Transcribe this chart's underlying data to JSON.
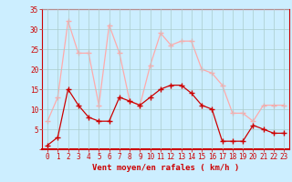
{
  "x": [
    0,
    1,
    2,
    3,
    4,
    5,
    6,
    7,
    8,
    9,
    10,
    11,
    12,
    13,
    14,
    15,
    16,
    17,
    18,
    19,
    20,
    21,
    22,
    23
  ],
  "wind_avg": [
    1,
    3,
    15,
    11,
    8,
    7,
    7,
    13,
    12,
    11,
    13,
    15,
    16,
    16,
    14,
    11,
    10,
    2,
    2,
    2,
    6,
    5,
    4,
    4
  ],
  "wind_gust": [
    7,
    13,
    32,
    24,
    24,
    11,
    31,
    24,
    12,
    11,
    21,
    29,
    26,
    27,
    27,
    20,
    19,
    16,
    9,
    9,
    7,
    11,
    11,
    11
  ],
  "avg_color": "#cc0000",
  "gust_color": "#ffaaaa",
  "bg_color": "#cceeff",
  "grid_color": "#aacccc",
  "xlabel": "Vent moyen/en rafales ( km/h )",
  "ylim": [
    0,
    35
  ],
  "yticks": [
    0,
    5,
    10,
    15,
    20,
    25,
    30,
    35
  ],
  "xticks": [
    0,
    1,
    2,
    3,
    4,
    5,
    6,
    7,
    8,
    9,
    10,
    11,
    12,
    13,
    14,
    15,
    16,
    17,
    18,
    19,
    20,
    21,
    22,
    23
  ],
  "tick_fontsize": 5.5,
  "xlabel_fontsize": 6.5
}
